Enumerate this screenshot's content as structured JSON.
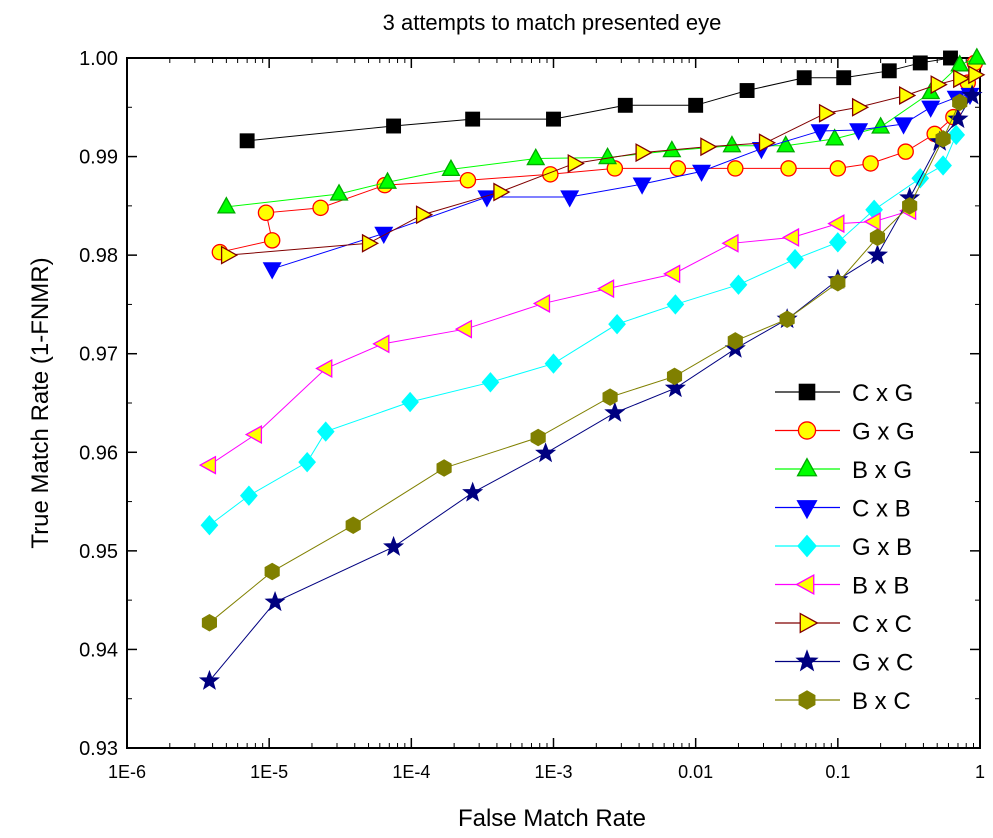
{
  "chart_data": {
    "type": "line",
    "title": "3 attempts to match presented eye",
    "xlabel": "False Match Rate",
    "ylabel": "True Match Rate (1-FNMR)",
    "xscale": "log",
    "xlim": [
      1e-06,
      1
    ],
    "ylim": [
      0.93,
      1.0
    ],
    "xticks": [
      {
        "value": 1e-06,
        "label": "1E-6"
      },
      {
        "value": 1e-05,
        "label": "1E-5"
      },
      {
        "value": 0.0001,
        "label": "1E-4"
      },
      {
        "value": 0.001,
        "label": "1E-3"
      },
      {
        "value": 0.01,
        "label": "0.01"
      },
      {
        "value": 0.1,
        "label": "0.1"
      },
      {
        "value": 1,
        "label": "1"
      }
    ],
    "yticks": [
      {
        "value": 0.93,
        "label": "0.93"
      },
      {
        "value": 0.94,
        "label": "0.94"
      },
      {
        "value": 0.95,
        "label": "0.95"
      },
      {
        "value": 0.96,
        "label": "0.96"
      },
      {
        "value": 0.97,
        "label": "0.97"
      },
      {
        "value": 0.98,
        "label": "0.98"
      },
      {
        "value": 0.99,
        "label": "0.99"
      },
      {
        "value": 1.0,
        "label": "1.00"
      }
    ],
    "grid": false,
    "legend_position": "bottom-right",
    "series": [
      {
        "name": "C x G",
        "marker": "square",
        "line": "#000000",
        "fill": "#000000",
        "stroke": "#000000",
        "x": [
          7e-06,
          7.5e-05,
          0.00027,
          0.001,
          0.0032,
          0.01,
          0.023,
          0.058,
          0.11,
          0.23,
          0.38,
          0.62
        ],
        "y": [
          0.9916,
          0.9931,
          0.9938,
          0.9938,
          0.9952,
          0.9952,
          0.9967,
          0.998,
          0.998,
          0.9987,
          0.9995,
          1.0
        ]
      },
      {
        "name": "G x G",
        "marker": "circle",
        "line": "#ff0000",
        "fill": "#ffff00",
        "stroke": "#ff0000",
        "x": [
          4.5e-06,
          1.05e-05,
          9.5e-06,
          2.3e-05,
          6.5e-05,
          0.00025,
          0.00095,
          0.0027,
          0.0075,
          0.019,
          0.045,
          0.1,
          0.17,
          0.3,
          0.48,
          0.65,
          0.82,
          0.92
        ],
        "y": [
          0.9803,
          0.9815,
          0.9843,
          0.9848,
          0.9871,
          0.9876,
          0.9882,
          0.9888,
          0.9888,
          0.9888,
          0.9888,
          0.9888,
          0.9893,
          0.9905,
          0.9923,
          0.994,
          0.9975,
          0.9995
        ]
      },
      {
        "name": "B x G",
        "marker": "triangle-up",
        "line": "#00ff00",
        "fill": "#00ff00",
        "stroke": "#00aa00",
        "x": [
          5e-06,
          3.1e-05,
          6.8e-05,
          0.00019,
          0.00075,
          0.0024,
          0.0068,
          0.018,
          0.043,
          0.095,
          0.2,
          0.45,
          0.72,
          0.95
        ],
        "y": [
          0.9849,
          0.9862,
          0.9874,
          0.9887,
          0.9898,
          0.9899,
          0.9906,
          0.9911,
          0.9911,
          0.9918,
          0.993,
          0.9965,
          0.9993,
          1.0
        ]
      },
      {
        "name": "C x B",
        "marker": "triangle-down",
        "line": "#0000ff",
        "fill": "#0000ff",
        "stroke": "#0000ff",
        "x": [
          1.05e-05,
          6.4e-05,
          0.00034,
          0.0013,
          0.0042,
          0.011,
          0.029,
          0.075,
          0.14,
          0.29,
          0.45,
          0.68,
          0.85
        ],
        "y": [
          0.9786,
          0.9822,
          0.9859,
          0.9859,
          0.9872,
          0.9885,
          0.9908,
          0.9926,
          0.9927,
          0.9933,
          0.995,
          0.996,
          0.9963
        ]
      },
      {
        "name": "G x B",
        "marker": "diamond",
        "line": "#00ffff",
        "fill": "#00ffff",
        "stroke": "#00ffff",
        "x": [
          3.8e-06,
          7.2e-06,
          1.85e-05,
          2.5e-05,
          9.8e-05,
          0.00036,
          0.001,
          0.0028,
          0.0072,
          0.02,
          0.05,
          0.1,
          0.18,
          0.38,
          0.55,
          0.68
        ],
        "y": [
          0.9526,
          0.9556,
          0.959,
          0.9621,
          0.9651,
          0.9671,
          0.969,
          0.973,
          0.975,
          0.977,
          0.9796,
          0.9813,
          0.9846,
          0.9878,
          0.9891,
          0.9922
        ]
      },
      {
        "name": "B x B",
        "marker": "triangle-left",
        "line": "#ff00ff",
        "fill": "#ffff00",
        "stroke": "#ff00ff",
        "x": [
          3.8e-06,
          8e-06,
          2.5e-05,
          6.3e-05,
          0.00024,
          0.00085,
          0.0024,
          0.007,
          0.018,
          0.048,
          0.1,
          0.18,
          0.32
        ],
        "y": [
          0.9587,
          0.9618,
          0.9685,
          0.971,
          0.9725,
          0.9751,
          0.9766,
          0.9781,
          0.9812,
          0.9818,
          0.9832,
          0.9834,
          0.9845
        ]
      },
      {
        "name": "C x C",
        "marker": "triangle-right",
        "line": "#800000",
        "fill": "#ffff00",
        "stroke": "#800000",
        "x": [
          5.1e-06,
          5e-05,
          0.00012,
          0.00042,
          0.0014,
          0.0042,
          0.012,
          0.031,
          0.082,
          0.14,
          0.3,
          0.5,
          0.72,
          0.92
        ],
        "y": [
          0.98,
          0.9812,
          0.9841,
          0.9864,
          0.9893,
          0.9904,
          0.991,
          0.9914,
          0.9944,
          0.995,
          0.9962,
          0.9973,
          0.9979,
          0.9983
        ]
      },
      {
        "name": "G x C",
        "marker": "star",
        "line": "#000080",
        "fill": "#000080",
        "stroke": "#000080",
        "x": [
          3.8e-06,
          1.1e-05,
          7.5e-05,
          0.00027,
          0.00088,
          0.0027,
          0.0072,
          0.019,
          0.044,
          0.1,
          0.19,
          0.32,
          0.52,
          0.7,
          0.88
        ],
        "y": [
          0.9368,
          0.9448,
          0.9504,
          0.9559,
          0.9599,
          0.964,
          0.9665,
          0.9705,
          0.9735,
          0.9775,
          0.98,
          0.9858,
          0.9915,
          0.9938,
          0.9962
        ]
      },
      {
        "name": "B x C",
        "marker": "hexagon",
        "line": "#808000",
        "fill": "#808000",
        "stroke": "#808000",
        "x": [
          3.8e-06,
          1.05e-05,
          3.9e-05,
          0.00017,
          0.00078,
          0.0025,
          0.0071,
          0.019,
          0.044,
          0.1,
          0.19,
          0.32,
          0.55,
          0.72
        ],
        "y": [
          0.9427,
          0.9479,
          0.9526,
          0.9584,
          0.9615,
          0.9656,
          0.9677,
          0.9713,
          0.9735,
          0.9772,
          0.9818,
          0.985,
          0.9918,
          0.9955
        ]
      }
    ]
  }
}
